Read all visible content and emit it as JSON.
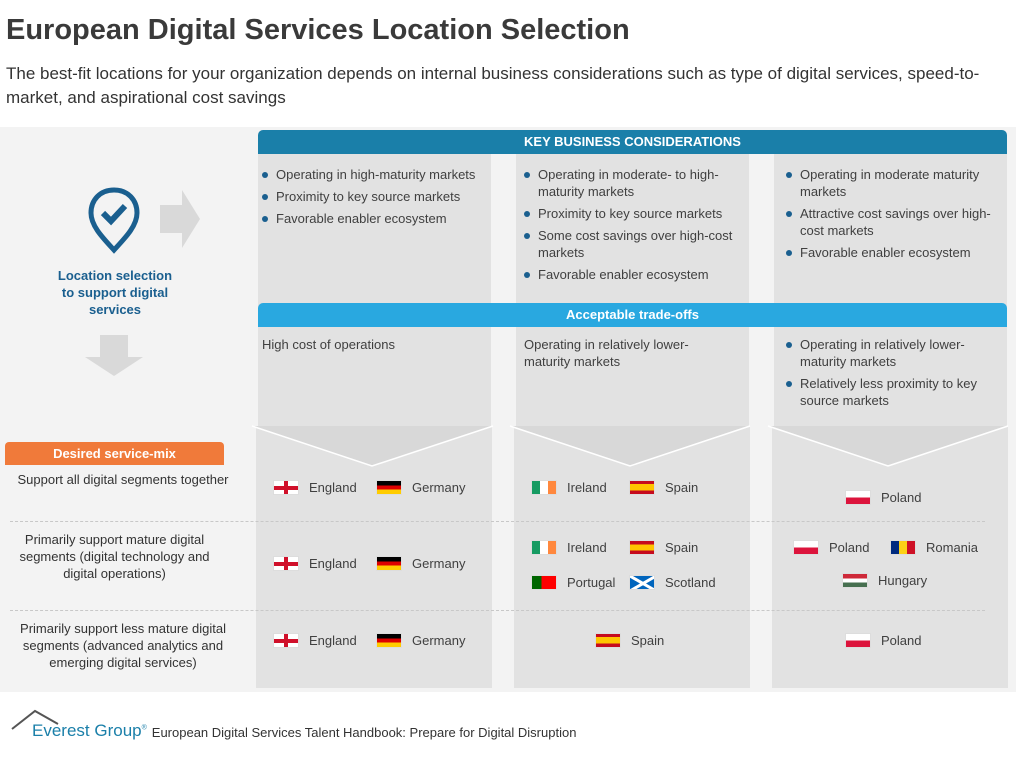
{
  "title": "European Digital Services Location Selection",
  "subtitle": "The best-fit locations for your organization depends on internal business considerations such as type of digital services, speed-to-market, and aspirational cost savings",
  "left": {
    "label": "Location selection to support digital services",
    "desired_label": "Desired service-mix",
    "icon": "location-check-icon",
    "rows": [
      "Support all digital segments together",
      "Primarily support mature digital segments (digital technology and digital operations)",
      "Primarily support less mature digital segments (advanced analytics and emerging digital services)"
    ]
  },
  "key_header": "KEY BUSINESS CONSIDERATIONS",
  "tradeoff_header": "Acceptable trade-offs",
  "columns": [
    {
      "considerations": [
        "Operating in high-maturity markets",
        "Proximity to key source markets",
        "Favorable enabler ecosystem"
      ],
      "tradeoffs": [
        "High cost of operations"
      ]
    },
    {
      "considerations": [
        "Operating in moderate- to high-maturity markets",
        "Proximity to key source markets",
        "Some cost savings over high-cost markets",
        "Favorable enabler ecosystem"
      ],
      "tradeoffs": [
        "Operating in relatively lower-maturity markets"
      ]
    },
    {
      "considerations": [
        "Operating in moderate maturity markets",
        "Attractive cost savings over high-cost markets",
        "Favorable enabler ecosystem"
      ],
      "tradeoffs": [
        "Operating in relatively lower-maturity markets",
        "Relatively less proximity to key source markets"
      ]
    }
  ],
  "countries": {
    "england": "England",
    "germany": "Germany",
    "ireland": "Ireland",
    "spain": "Spain",
    "portugal": "Portugal",
    "scotland": "Scotland",
    "poland": "Poland",
    "romania": "Romania",
    "hungary": "Hungary"
  },
  "footer": {
    "logo": "Everest Group",
    "text": "European Digital Services Talent Handbook: Prepare for Digital Disruption"
  },
  "colors": {
    "header_bar": "#1a7fa9",
    "tradeoff_bar": "#29a8e0",
    "desired_badge": "#f07a3a",
    "accent_text": "#1a5f8f"
  }
}
